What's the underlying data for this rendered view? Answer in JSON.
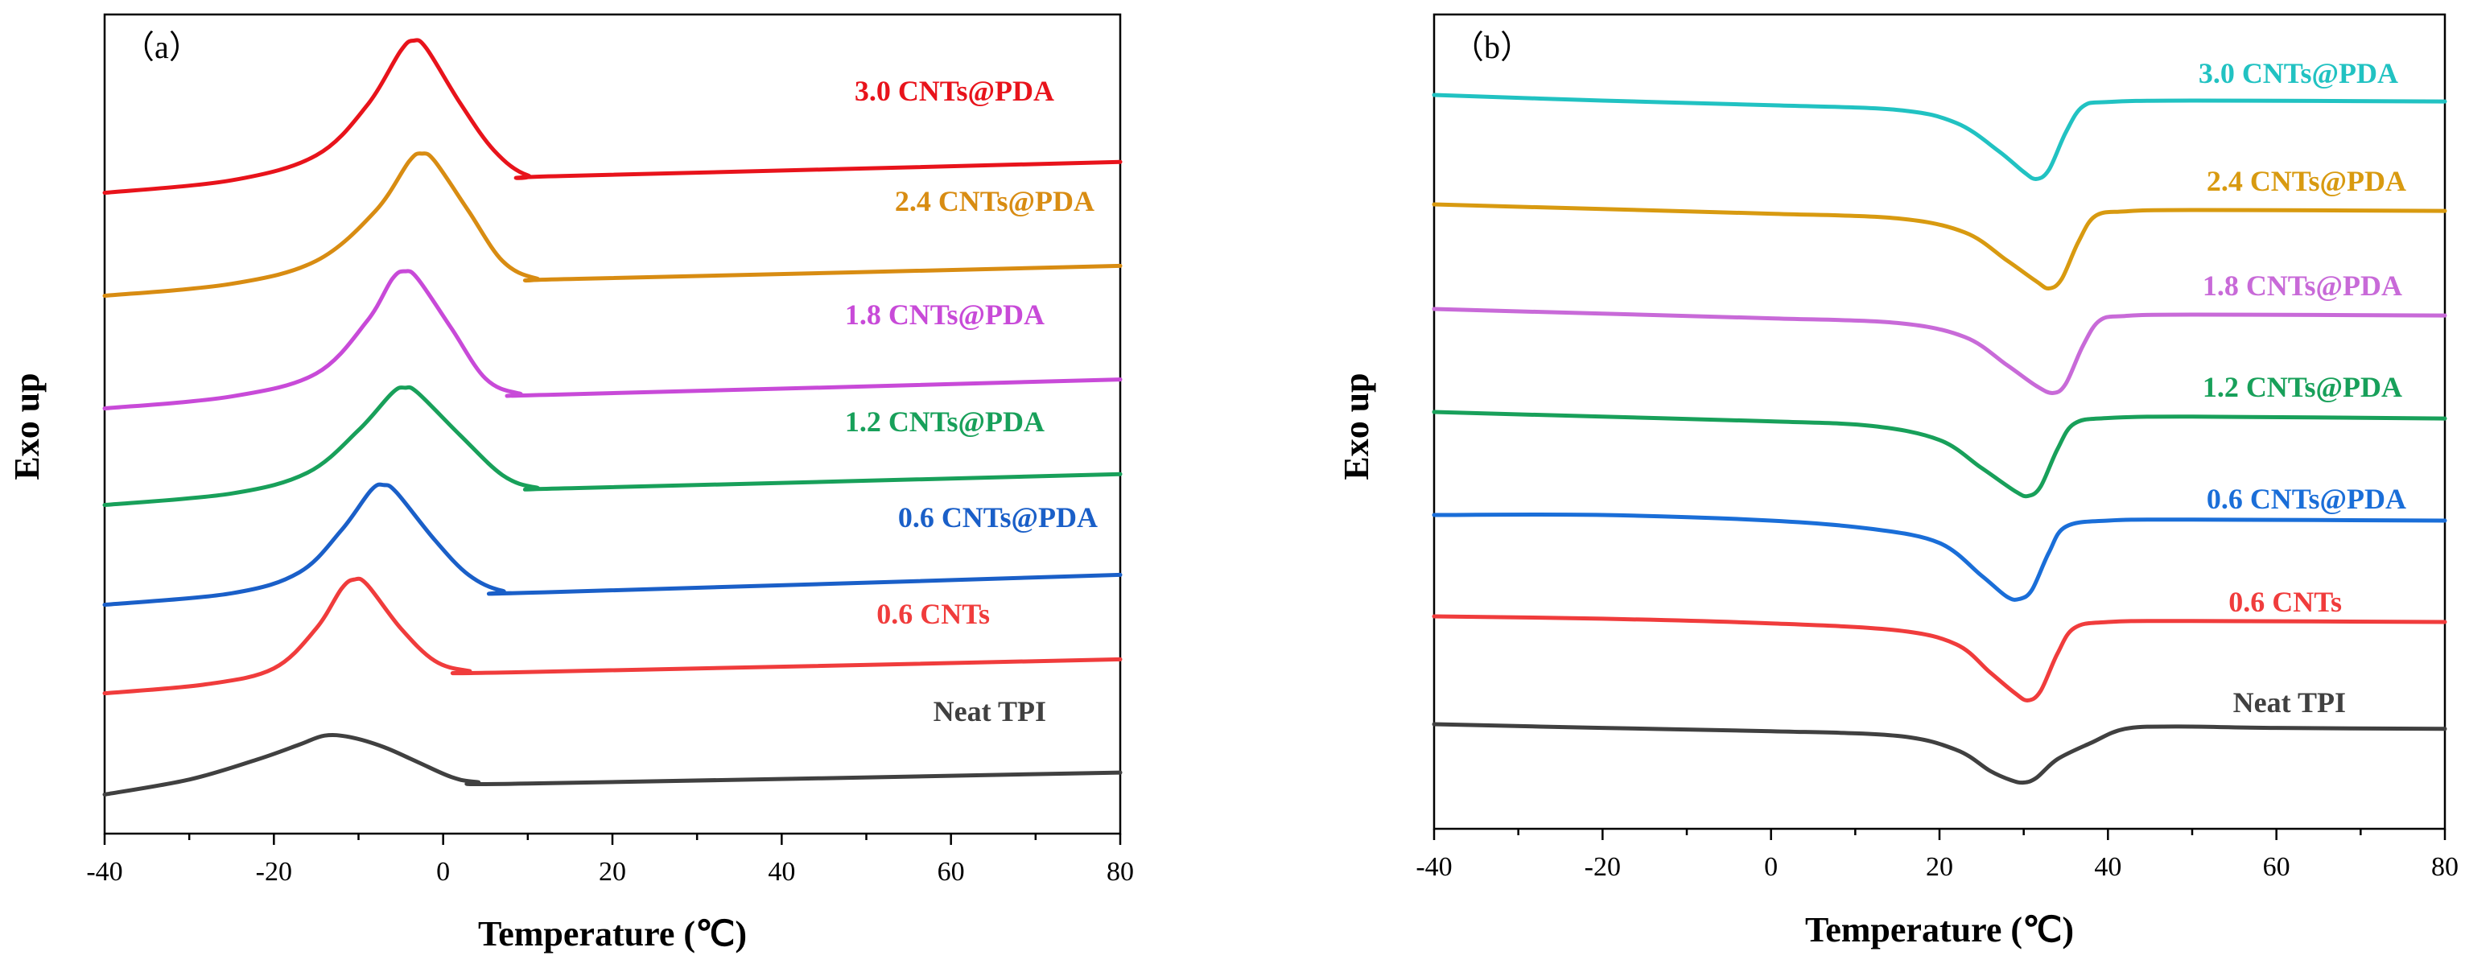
{
  "chart_data": [
    {
      "type": "line",
      "panel_label": "（a）",
      "title": "",
      "xlabel": "Temperature (℃)",
      "ylabel": "Exo up",
      "xlim": [
        -40,
        80
      ],
      "xticks": [
        -40,
        -20,
        0,
        20,
        40,
        60,
        80
      ],
      "yticks_visible": false,
      "series": [
        {
          "name": "3.0 CNTs@PDA",
          "color": "#e8131b",
          "points": [
            [
              -40,
              -0.8
            ],
            [
              -25,
              -0.55
            ],
            [
              -15,
              -0.05
            ],
            [
              -9,
              0.95
            ],
            [
              -5,
              2.05
            ],
            [
              -3.5,
              2.25
            ],
            [
              -2,
              2.1
            ],
            [
              2,
              1.0
            ],
            [
              6,
              0.05
            ],
            [
              10,
              -0.45
            ],
            [
              15,
              -0.46
            ],
            [
              80,
              -0.18
            ]
          ]
        },
        {
          "name": "2.4 CNTs@PDA",
          "color": "#d88c12",
          "points": [
            [
              -40,
              -0.8
            ],
            [
              -25,
              -0.56
            ],
            [
              -15,
              -0.1
            ],
            [
              -8,
              0.9
            ],
            [
              -4,
              1.9
            ],
            [
              -2.5,
              2.05
            ],
            [
              -1,
              1.9
            ],
            [
              3,
              0.9
            ],
            [
              7,
              -0.1
            ],
            [
              11,
              -0.45
            ],
            [
              16,
              -0.46
            ],
            [
              80,
              -0.2
            ]
          ]
        },
        {
          "name": "1.8 CNTs@PDA",
          "color": "#c84ad8",
          "points": [
            [
              -40,
              -0.8
            ],
            [
              -25,
              -0.56
            ],
            [
              -15,
              -0.1
            ],
            [
              -9,
              0.95
            ],
            [
              -6,
              1.8
            ],
            [
              -4.5,
              1.95
            ],
            [
              -3,
              1.8
            ],
            [
              1,
              0.8
            ],
            [
              5,
              -0.2
            ],
            [
              9,
              -0.5
            ],
            [
              14,
              -0.52
            ],
            [
              80,
              -0.22
            ]
          ]
        },
        {
          "name": "1.2 CNTs@PDA",
          "color": "#18a05a",
          "points": [
            [
              -40,
              -0.8
            ],
            [
              -25,
              -0.57
            ],
            [
              -16,
              -0.15
            ],
            [
              -10,
              0.7
            ],
            [
              -6,
              1.45
            ],
            [
              -4.5,
              1.55
            ],
            [
              -3,
              1.45
            ],
            [
              2,
              0.6
            ],
            [
              7,
              -0.2
            ],
            [
              11,
              -0.45
            ],
            [
              16,
              -0.46
            ],
            [
              80,
              -0.18
            ]
          ]
        },
        {
          "name": "0.6 CNTs@PDA",
          "color": "#1a5fc8",
          "points": [
            [
              -40,
              -0.8
            ],
            [
              -25,
              -0.57
            ],
            [
              -17,
              -0.15
            ],
            [
              -12,
              0.7
            ],
            [
              -8.5,
              1.5
            ],
            [
              -7,
              1.6
            ],
            [
              -5.5,
              1.45
            ],
            [
              -1,
              0.5
            ],
            [
              3,
              -0.2
            ],
            [
              7,
              -0.52
            ],
            [
              12,
              -0.55
            ],
            [
              80,
              -0.2
            ]
          ]
        },
        {
          "name": "0.6 CNTs",
          "color": "#f03c3c",
          "points": [
            [
              -40,
              -0.8
            ],
            [
              -28,
              -0.62
            ],
            [
              -20,
              -0.3
            ],
            [
              -15,
              0.5
            ],
            [
              -12,
              1.3
            ],
            [
              -10.5,
              1.48
            ],
            [
              -9,
              1.38
            ],
            [
              -5,
              0.5
            ],
            [
              -1,
              -0.15
            ],
            [
              3,
              -0.35
            ],
            [
              8,
              -0.38
            ],
            [
              80,
              -0.12
            ]
          ]
        },
        {
          "name": "Neat TPI",
          "color": "#404040",
          "points": [
            [
              -40,
              -0.7
            ],
            [
              -30,
              -0.4
            ],
            [
              -22,
              0.0
            ],
            [
              -17,
              0.3
            ],
            [
              -14,
              0.48
            ],
            [
              -11,
              0.45
            ],
            [
              -7,
              0.25
            ],
            [
              -3,
              -0.05
            ],
            [
              1,
              -0.35
            ],
            [
              4,
              -0.45
            ],
            [
              10,
              -0.48
            ],
            [
              80,
              -0.26
            ]
          ]
        }
      ],
      "annotations": [
        "3.0 CNTs@PDA",
        "2.4 CNTs@PDA",
        "1.8 CNTs@PDA",
        "1.2 CNTs@PDA",
        "0.6 CNTs@PDA",
        "0.6 CNTs",
        "Neat TPI"
      ]
    },
    {
      "type": "line",
      "panel_label": "（b）",
      "title": "",
      "xlabel": "Temperature (℃)",
      "ylabel": "Exo up",
      "xlim": [
        -40,
        80
      ],
      "xticks": [
        -40,
        -20,
        0,
        20,
        40,
        60,
        80
      ],
      "yticks_visible": false,
      "series": [
        {
          "name": "3.0 CNTs@PDA",
          "color": "#21c2c2",
          "points": [
            [
              -40,
              0.0
            ],
            [
              -20,
              -0.12
            ],
            [
              0,
              -0.22
            ],
            [
              15,
              -0.32
            ],
            [
              22,
              -0.6
            ],
            [
              27,
              -1.2
            ],
            [
              30,
              -1.65
            ],
            [
              31.5,
              -1.8
            ],
            [
              33,
              -1.6
            ],
            [
              35,
              -0.8
            ],
            [
              37,
              -0.25
            ],
            [
              40,
              -0.15
            ],
            [
              50,
              -0.12
            ],
            [
              80,
              -0.14
            ]
          ]
        },
        {
          "name": "2.4 CNTs@PDA",
          "color": "#d89a10",
          "points": [
            [
              -40,
              0.0
            ],
            [
              -20,
              -0.1
            ],
            [
              0,
              -0.2
            ],
            [
              15,
              -0.3
            ],
            [
              23,
              -0.6
            ],
            [
              28,
              -1.2
            ],
            [
              31.5,
              -1.65
            ],
            [
              33,
              -1.8
            ],
            [
              34.5,
              -1.6
            ],
            [
              36.5,
              -0.8
            ],
            [
              38.5,
              -0.25
            ],
            [
              42,
              -0.15
            ],
            [
              50,
              -0.12
            ],
            [
              80,
              -0.14
            ]
          ]
        },
        {
          "name": "1.8 CNTs@PDA",
          "color": "#c86ad8",
          "points": [
            [
              -40,
              0.0
            ],
            [
              -20,
              -0.1
            ],
            [
              0,
              -0.2
            ],
            [
              15,
              -0.3
            ],
            [
              23,
              -0.6
            ],
            [
              28,
              -1.2
            ],
            [
              31.5,
              -1.65
            ],
            [
              33.5,
              -1.8
            ],
            [
              35,
              -1.6
            ],
            [
              37,
              -0.8
            ],
            [
              39,
              -0.25
            ],
            [
              42,
              -0.15
            ],
            [
              50,
              -0.12
            ],
            [
              80,
              -0.14
            ]
          ]
        },
        {
          "name": "1.2 CNTs@PDA",
          "color": "#18a05a",
          "points": [
            [
              -40,
              0.0
            ],
            [
              -20,
              -0.1
            ],
            [
              0,
              -0.2
            ],
            [
              12,
              -0.3
            ],
            [
              20,
              -0.6
            ],
            [
              25,
              -1.2
            ],
            [
              29,
              -1.7
            ],
            [
              30.5,
              -1.8
            ],
            [
              32,
              -1.6
            ],
            [
              34,
              -0.8
            ],
            [
              36,
              -0.25
            ],
            [
              40,
              -0.13
            ],
            [
              50,
              -0.1
            ],
            [
              80,
              -0.14
            ]
          ]
        },
        {
          "name": "0.6 CNTs@PDA",
          "color": "#1a6ed8",
          "points": [
            [
              -40,
              0.0
            ],
            [
              -20,
              0.0
            ],
            [
              0,
              -0.12
            ],
            [
              12,
              -0.3
            ],
            [
              20,
              -0.6
            ],
            [
              25,
              -1.3
            ],
            [
              28,
              -1.75
            ],
            [
              29.5,
              -1.8
            ],
            [
              31,
              -1.6
            ],
            [
              33,
              -0.8
            ],
            [
              35,
              -0.25
            ],
            [
              40,
              -0.12
            ],
            [
              50,
              -0.1
            ],
            [
              80,
              -0.12
            ]
          ]
        },
        {
          "name": "0.6 CNTs",
          "color": "#f03c3c",
          "points": [
            [
              -40,
              0.0
            ],
            [
              -20,
              -0.05
            ],
            [
              0,
              -0.15
            ],
            [
              15,
              -0.3
            ],
            [
              22,
              -0.6
            ],
            [
              26,
              -1.2
            ],
            [
              29,
              -1.65
            ],
            [
              30.5,
              -1.8
            ],
            [
              32,
              -1.6
            ],
            [
              34,
              -0.8
            ],
            [
              36,
              -0.25
            ],
            [
              40,
              -0.12
            ],
            [
              50,
              -0.1
            ],
            [
              80,
              -0.12
            ]
          ]
        },
        {
          "name": "Neat TPI",
          "color": "#404040",
          "points": [
            [
              -40,
              0.0
            ],
            [
              -20,
              -0.08
            ],
            [
              0,
              -0.15
            ],
            [
              15,
              -0.25
            ],
            [
              22,
              -0.55
            ],
            [
              26,
              -1.0
            ],
            [
              28.5,
              -1.2
            ],
            [
              30,
              -1.25
            ],
            [
              31.5,
              -1.15
            ],
            [
              34,
              -0.75
            ],
            [
              38,
              -0.4
            ],
            [
              42,
              -0.1
            ],
            [
              48,
              -0.05
            ],
            [
              60,
              -0.08
            ],
            [
              80,
              -0.1
            ]
          ]
        }
      ],
      "annotations": [
        "3.0 CNTs@PDA",
        "2.4 CNTs@PDA",
        "1.8 CNTs@PDA",
        "1.2 CNTs@PDA",
        "0.6 CNTs@PDA",
        "0.6 CNTs",
        "Neat TPI"
      ]
    }
  ]
}
